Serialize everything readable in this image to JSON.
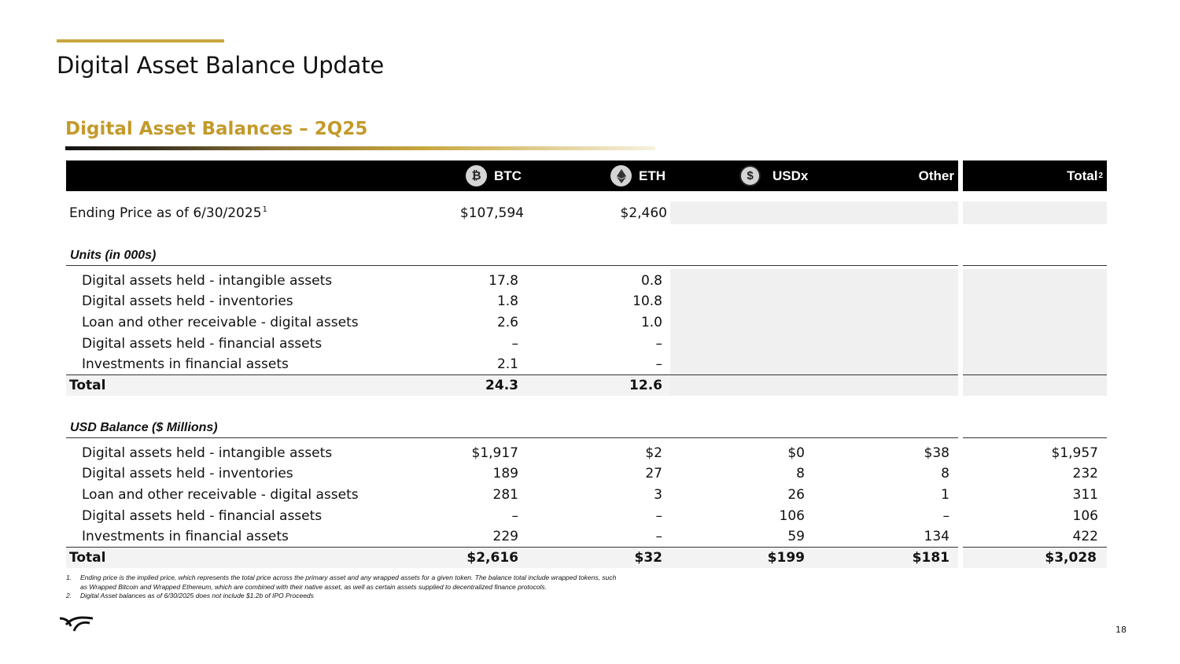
{
  "page": {
    "title": "Digital Asset Balance Update",
    "section_title": "Digital Asset Balances – 2Q25",
    "page_number": "18"
  },
  "columns": {
    "btc": "BTC",
    "btc_symbol": "₿",
    "eth": "ETH",
    "usdx": "USDx",
    "usdx_symbol": "$",
    "other": "Other",
    "total": "Total",
    "total_sup": "2"
  },
  "price_row": {
    "label": "Ending Price as of 6/30/2025",
    "label_sup": "1",
    "btc": "$107,594",
    "eth": "$2,460"
  },
  "units": {
    "heading": "Units (in 000s)",
    "rows": [
      {
        "label": "Digital assets held - intangible assets",
        "btc": "17.8",
        "eth": "0.8"
      },
      {
        "label": "Digital assets held - inventories",
        "btc": "1.8",
        "eth": "10.8"
      },
      {
        "label": "Loan and other receivable - digital assets",
        "btc": "2.6",
        "eth": "1.0"
      },
      {
        "label": "Digital assets held - financial assets",
        "btc": "–",
        "eth": "–"
      },
      {
        "label": "Investments in financial assets",
        "btc": "2.1",
        "eth": "–"
      }
    ],
    "total": {
      "label": "Total",
      "btc": "24.3",
      "eth": "12.6"
    }
  },
  "usd": {
    "heading": "USD Balance ($ Millions)",
    "rows": [
      {
        "label": "Digital assets held - intangible assets",
        "btc": "$1,917",
        "eth": "$2",
        "usdx": "$0",
        "other": "$38",
        "total": "$1,957"
      },
      {
        "label": "Digital assets held - inventories",
        "btc": "189",
        "eth": "27",
        "usdx": "8",
        "other": "8",
        "total": "232"
      },
      {
        "label": "Loan and other receivable - digital assets",
        "btc": "281",
        "eth": "3",
        "usdx": "26",
        "other": "1",
        "total": "311"
      },
      {
        "label": "Digital assets held - financial assets",
        "btc": "–",
        "eth": "–",
        "usdx": "106",
        "other": "–",
        "total": "106"
      },
      {
        "label": "Investments in financial assets",
        "btc": "229",
        "eth": "–",
        "usdx": "59",
        "other": "134",
        "total": "422"
      }
    ],
    "total": {
      "label": "Total",
      "btc": "$2,616",
      "eth": "$32",
      "usdx": "$199",
      "other": "$181",
      "total": "$3,028"
    }
  },
  "footnotes": [
    {
      "num": "1.",
      "text": "Ending price is the implied price, which represents the total price across the primary asset and any wrapped assets for a given token. The balance total include wrapped tokens, such"
    },
    {
      "num": "",
      "text": "as Wrapped Bitcoin and Wrapped Ethereum, which are combined with their native asset, as well as certain assets supplied to decentralized finance protocols."
    },
    {
      "num": "2.",
      "text": "Digital Asset balances as of 6/30/2025 does not include $1.2b of IPO Proceeds"
    }
  ],
  "colors": {
    "accent": "#c39a2b",
    "header_bg": "#000000",
    "shade": "#f0f0f0"
  }
}
